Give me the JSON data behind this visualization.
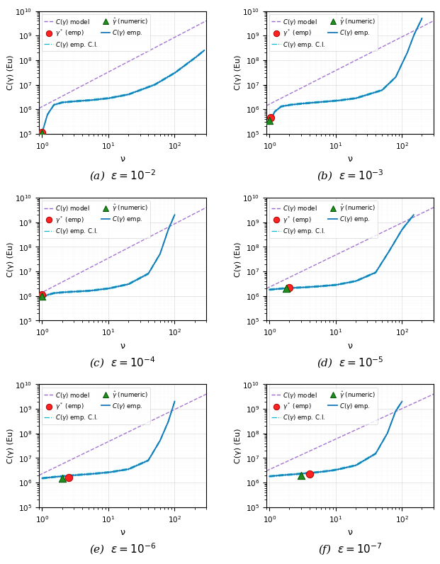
{
  "subplots": [
    {
      "label": "(a)",
      "epsilon_exp": -2,
      "gamma_star_x": 1.0,
      "gamma_star_y": 110000.0,
      "gamma_hat_x": 1.0,
      "gamma_hat_y": 105000.0,
      "model_x0": 0.9,
      "model_y0": 1100000.0,
      "model_x1": 300,
      "model_y1": 4000000000.0,
      "emp_pts_x": [
        1.0,
        1.2,
        1.5,
        2.0,
        3.0,
        5.0,
        10.0,
        20.0,
        50.0,
        100.0,
        200.0,
        280.0
      ],
      "emp_pts_y": [
        110000.0,
        600000.0,
        1500000.0,
        1900000.0,
        2100000.0,
        2300000.0,
        2800000.0,
        4000000.0,
        10000000.0,
        30000000.0,
        120000000.0,
        250000000.0
      ]
    },
    {
      "label": "(b)",
      "epsilon_exp": -3,
      "gamma_star_x": 1.05,
      "gamma_star_y": 450000.0,
      "gamma_hat_x": 1.0,
      "gamma_hat_y": 350000.0,
      "model_x0": 0.9,
      "model_y0": 1400000.0,
      "model_x1": 300,
      "model_y1": 4000000000.0,
      "emp_pts_x": [
        1.0,
        1.2,
        1.5,
        2.0,
        3.0,
        5.0,
        10.0,
        20.0,
        50.0,
        80.0,
        120.0,
        150.0,
        200.0
      ],
      "emp_pts_y": [
        300000.0,
        800000.0,
        1300000.0,
        1500000.0,
        1700000.0,
        1900000.0,
        2200000.0,
        2800000.0,
        6000000.0,
        20000000.0,
        200000000.0,
        1000000000.0,
        5000000000.0
      ]
    },
    {
      "label": "(c)",
      "epsilon_exp": -4,
      "gamma_star_x": 1.0,
      "gamma_star_y": 1100000.0,
      "gamma_hat_x": 1.0,
      "gamma_hat_y": 1000000.0,
      "model_x0": 0.9,
      "model_y0": 1200000.0,
      "model_x1": 300,
      "model_y1": 4000000000.0,
      "emp_pts_x": [
        1.0,
        1.2,
        1.5,
        2.0,
        3.0,
        5.0,
        10.0,
        20.0,
        40.0,
        60.0,
        80.0,
        100.0
      ],
      "emp_pts_y": [
        800000.0,
        1100000.0,
        1300000.0,
        1400000.0,
        1500000.0,
        1600000.0,
        2000000.0,
        3000000.0,
        8000000.0,
        50000000.0,
        500000000.0,
        2000000000.0
      ]
    },
    {
      "label": "(d)",
      "epsilon_exp": -5,
      "gamma_star_x": 2.0,
      "gamma_star_y": 2200000.0,
      "gamma_hat_x": 1.8,
      "gamma_hat_y": 2000000.0,
      "model_x0": 0.9,
      "model_y0": 2000000.0,
      "model_x1": 300,
      "model_y1": 4000000000.0,
      "emp_pts_x": [
        1.0,
        1.5,
        2.0,
        3.0,
        5.0,
        10.0,
        20.0,
        40.0,
        60.0,
        100.0,
        150.0
      ],
      "emp_pts_y": [
        1800000.0,
        2000000.0,
        2100000.0,
        2200000.0,
        2400000.0,
        2800000.0,
        4000000.0,
        9000000.0,
        50000000.0,
        500000000.0,
        2000000000.0
      ]
    },
    {
      "label": "(e)",
      "epsilon_exp": -6,
      "gamma_star_x": 2.5,
      "gamma_star_y": 1600000.0,
      "gamma_hat_x": 2.0,
      "gamma_hat_y": 1500000.0,
      "model_x0": 0.9,
      "model_y0": 2000000.0,
      "model_x1": 300,
      "model_y1": 4000000000.0,
      "emp_pts_x": [
        1.0,
        1.5,
        2.0,
        3.0,
        5.0,
        10.0,
        20.0,
        40.0,
        60.0,
        80.0,
        100.0
      ],
      "emp_pts_y": [
        1500000.0,
        1700000.0,
        1800000.0,
        2000000.0,
        2200000.0,
        2600000.0,
        3500000.0,
        8000000.0,
        50000000.0,
        300000000.0,
        2000000000.0
      ]
    },
    {
      "label": "(f)",
      "epsilon_exp": -7,
      "gamma_star_x": 4.0,
      "gamma_star_y": 2200000.0,
      "gamma_hat_x": 3.0,
      "gamma_hat_y": 1900000.0,
      "model_x0": 0.9,
      "model_y0": 3000000.0,
      "model_x1": 300,
      "model_y1": 4000000000.0,
      "emp_pts_x": [
        1.0,
        1.5,
        2.0,
        3.0,
        5.0,
        8.0,
        10.0,
        20.0,
        40.0,
        60.0,
        80.0,
        100.0
      ],
      "emp_pts_y": [
        1800000.0,
        2000000.0,
        2100000.0,
        2300000.0,
        2600000.0,
        3000000.0,
        3300000.0,
        5000000.0,
        15000000.0,
        100000000.0,
        800000000.0,
        2000000000.0
      ]
    }
  ],
  "xlim": [
    0.9,
    300
  ],
  "ylim": [
    100000.0,
    10000000000.0
  ],
  "model_color": "#9966cc",
  "ci_color": "#00bbcc",
  "emp_color": "#1877b8",
  "star_color": "#ff2222",
  "hat_color": "#228B22",
  "star_edge": "#aa0000",
  "hat_edge": "#005500",
  "ylabel": "C(γ) (Eu)",
  "xlabel": "ν"
}
